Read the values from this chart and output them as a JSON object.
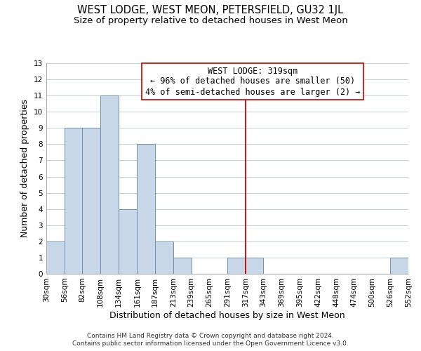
{
  "title": "WEST LODGE, WEST MEON, PETERSFIELD, GU32 1JL",
  "subtitle": "Size of property relative to detached houses in West Meon",
  "xlabel": "Distribution of detached houses by size in West Meon",
  "ylabel": "Number of detached properties",
  "bin_edges": [
    30,
    56,
    82,
    108,
    134,
    161,
    187,
    213,
    239,
    265,
    291,
    317,
    343,
    369,
    395,
    422,
    448,
    474,
    500,
    526,
    552
  ],
  "bin_counts": [
    2,
    9,
    9,
    11,
    4,
    8,
    2,
    1,
    0,
    0,
    1,
    1,
    0,
    0,
    0,
    0,
    0,
    0,
    0,
    1
  ],
  "bar_color": "#c8d8e8",
  "bar_edge_color": "#7090b0",
  "reference_line_x": 317,
  "reference_line_color": "#cc0000",
  "ylim": [
    0,
    13
  ],
  "yticks": [
    0,
    1,
    2,
    3,
    4,
    5,
    6,
    7,
    8,
    9,
    10,
    11,
    12,
    13
  ],
  "annotation_title": "WEST LODGE: 319sqm",
  "annotation_line1": "← 96% of detached houses are smaller (50)",
  "annotation_line2": "4% of semi-detached houses are larger (2) →",
  "footer_line1": "Contains HM Land Registry data © Crown copyright and database right 2024.",
  "footer_line2": "Contains public sector information licensed under the Open Government Licence v3.0.",
  "background_color": "#ffffff",
  "grid_color": "#c8d0d8",
  "title_fontsize": 10.5,
  "subtitle_fontsize": 9.5,
  "xlabel_fontsize": 9,
  "ylabel_fontsize": 9,
  "tick_fontsize": 7.5,
  "annotation_fontsize": 8.5,
  "footer_fontsize": 6.5,
  "annotation_box_color": "#cc0000"
}
